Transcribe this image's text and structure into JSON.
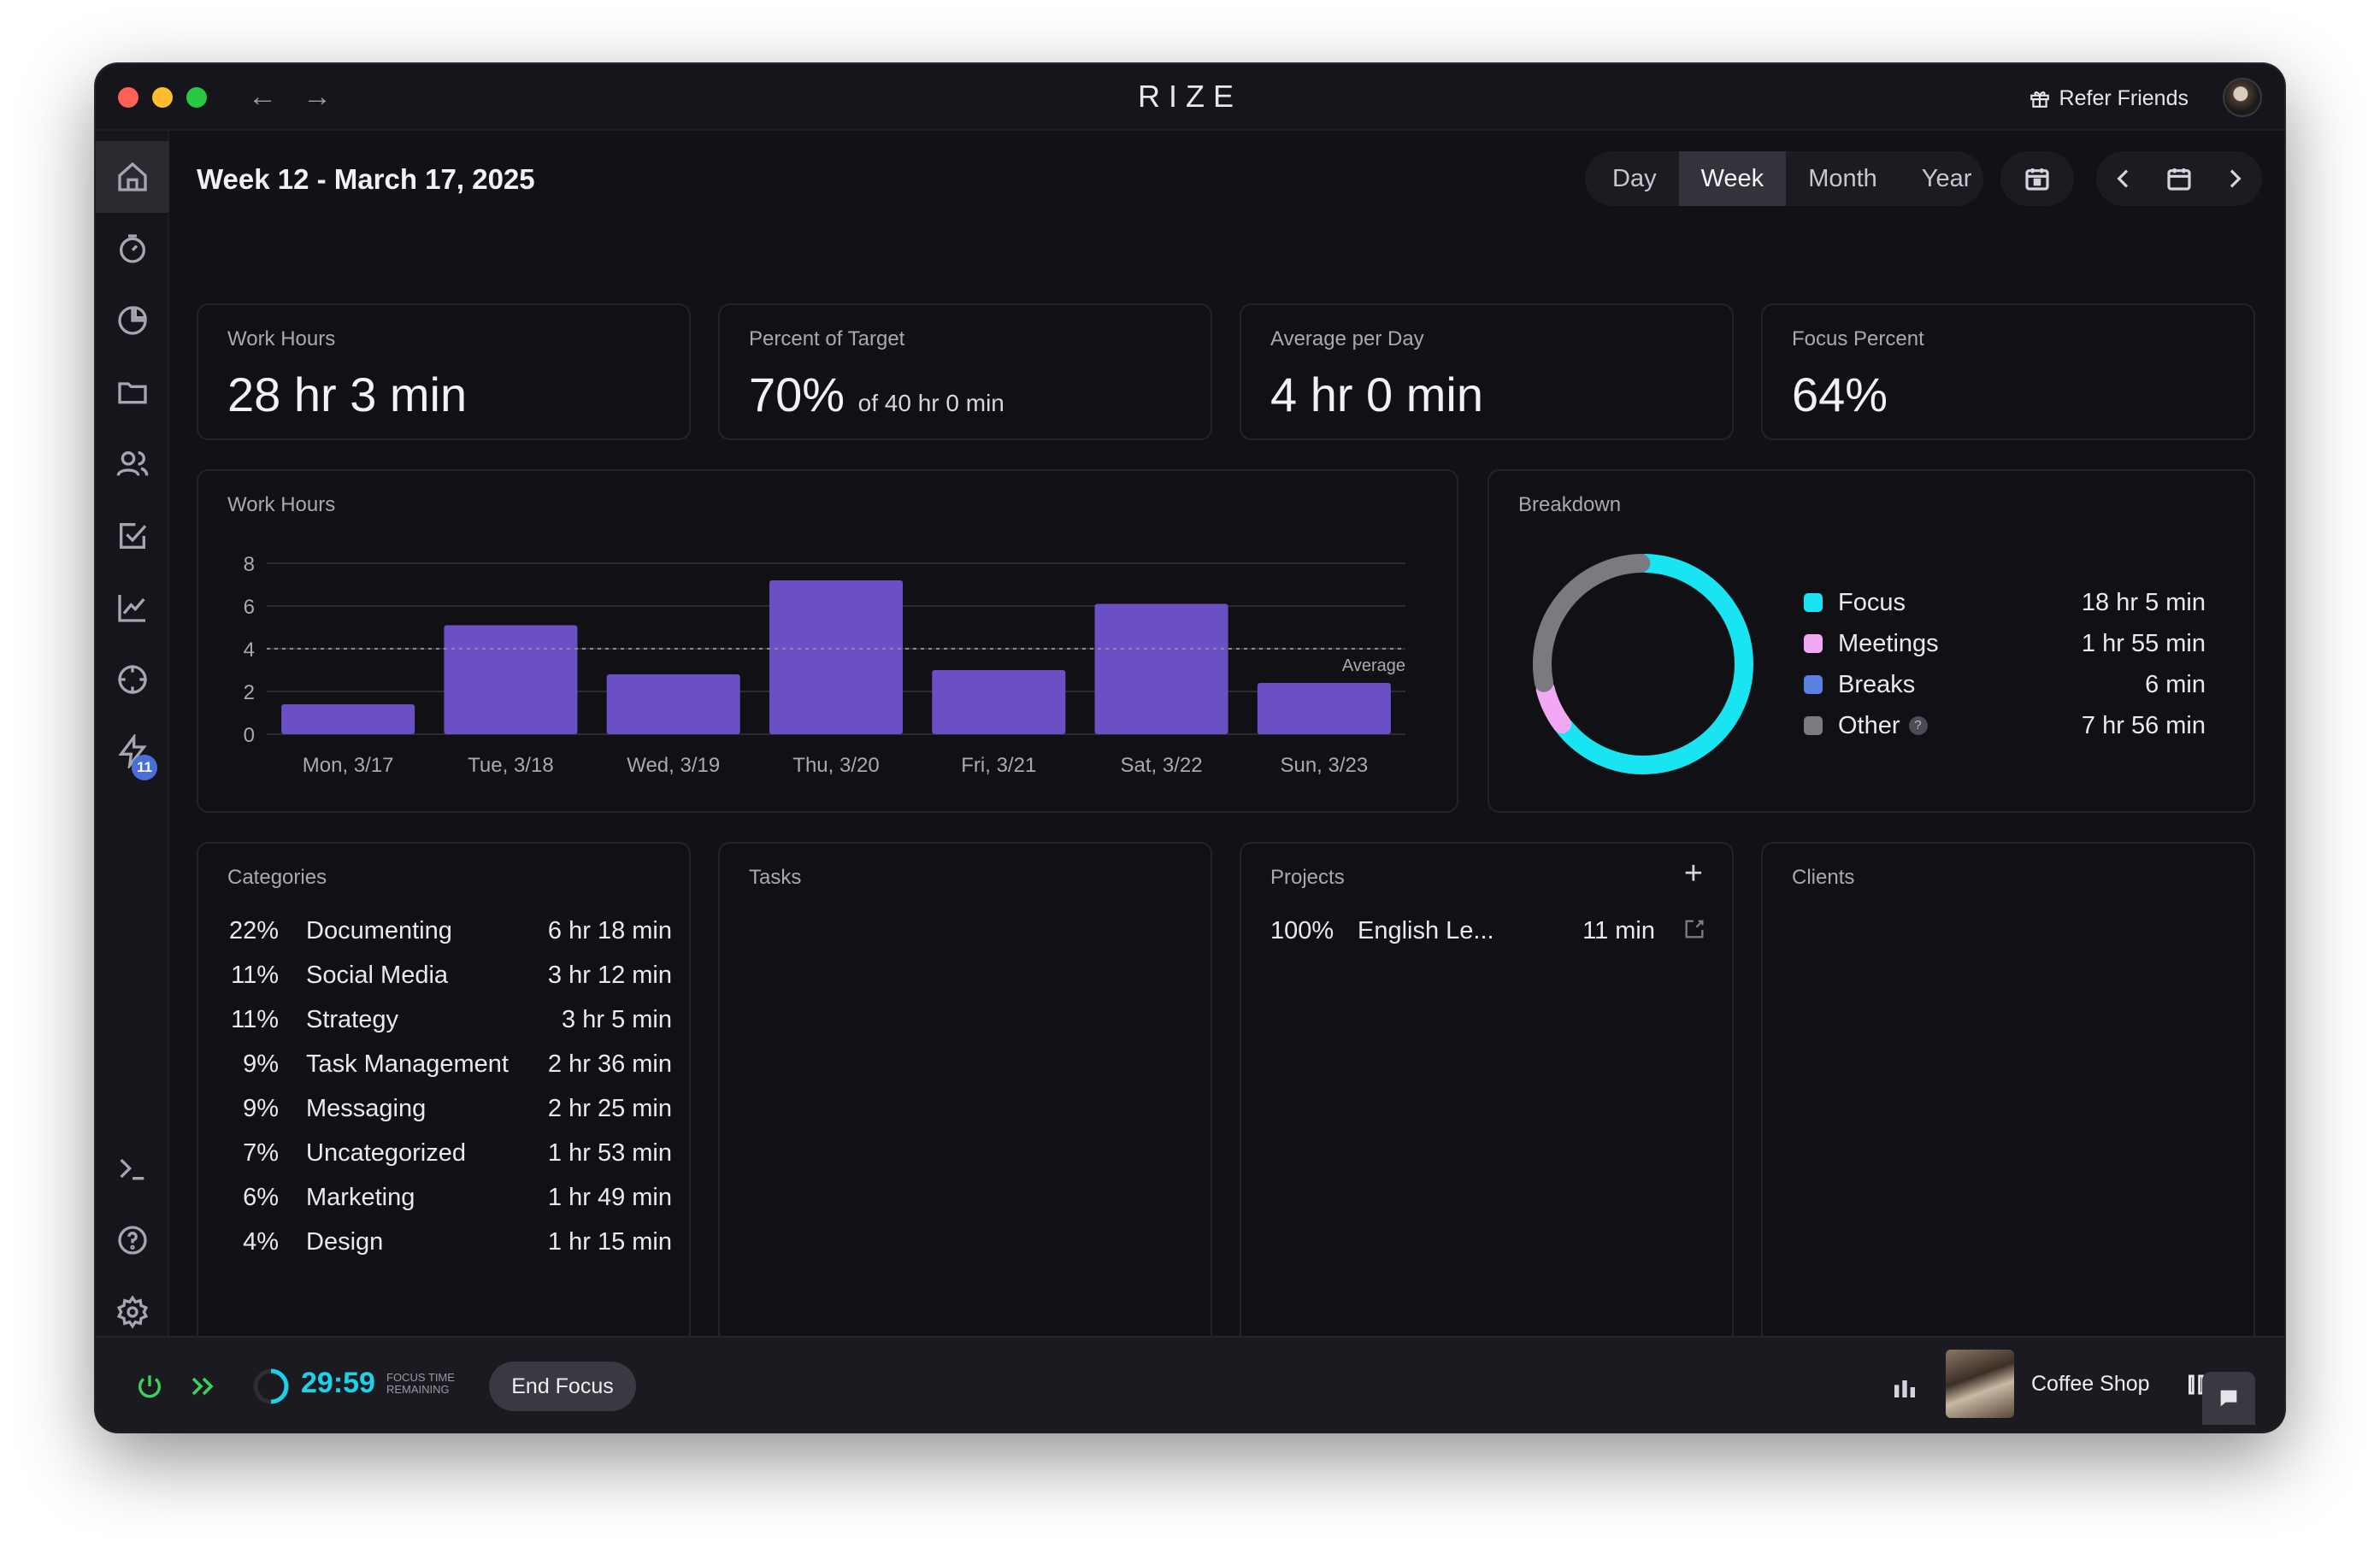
{
  "window": {
    "title": "RIZE",
    "refer_label": "Refer Friends",
    "back_arrow": "←",
    "forward_arrow": "→"
  },
  "sidebar": {
    "items": [
      {
        "name": "home-icon",
        "active": true
      },
      {
        "name": "timer-icon"
      },
      {
        "name": "pie-chart-icon"
      },
      {
        "name": "folder-icon"
      },
      {
        "name": "users-icon"
      },
      {
        "name": "checkbox-icon"
      },
      {
        "name": "trend-chart-icon"
      },
      {
        "name": "target-icon"
      },
      {
        "name": "lightning-icon",
        "badge": "11"
      }
    ],
    "bottom_items": [
      "terminal-icon",
      "help-icon",
      "gear-icon"
    ]
  },
  "header": {
    "title": "Week 12 - March 17, 2025",
    "ranges": [
      "Day",
      "Week",
      "Month",
      "Year"
    ],
    "active_range": "Week"
  },
  "stats": [
    {
      "label": "Work Hours",
      "value": "28 hr 3 min",
      "sub": ""
    },
    {
      "label": "Percent of Target",
      "value": "70%",
      "sub": "of 40 hr 0 min"
    },
    {
      "label": "Average per Day",
      "value": "4 hr 0 min",
      "sub": ""
    },
    {
      "label": "Focus Percent",
      "value": "64%",
      "sub": ""
    }
  ],
  "work_chart": {
    "title": "Work Hours",
    "average_label": "Average"
  },
  "chart_data": {
    "type": "bar",
    "categories": [
      "Mon, 3/17",
      "Tue, 3/18",
      "Wed, 3/19",
      "Thu, 3/20",
      "Fri, 3/21",
      "Sat, 3/22",
      "Sun, 3/23"
    ],
    "values": [
      1.4,
      5.1,
      2.8,
      7.2,
      3.0,
      6.1,
      2.4
    ],
    "yticks": [
      0,
      2,
      4,
      6,
      8
    ],
    "ylim": [
      0,
      8
    ],
    "average": 4.0,
    "bar_color": "#6a50c4",
    "grid": true
  },
  "breakdown": {
    "title": "Breakdown",
    "items": [
      {
        "label": "Focus",
        "value": "18 hr 5 min",
        "color": "#18e4f2",
        "minutes": 1085
      },
      {
        "label": "Meetings",
        "value": "1 hr 55 min",
        "color": "#f2a8f2",
        "minutes": 115
      },
      {
        "label": "Breaks",
        "value": "6 min",
        "color": "#5a7fe0",
        "minutes": 6
      },
      {
        "label": "Other",
        "value": "7 hr 56 min",
        "color": "#7a7a80",
        "minutes": 476,
        "help": "?"
      }
    ]
  },
  "categories": {
    "title": "Categories",
    "rows": [
      {
        "pct": "22%",
        "name": "Documenting",
        "time": "6 hr 18 min"
      },
      {
        "pct": "11%",
        "name": "Social Media",
        "time": "3 hr 12 min"
      },
      {
        "pct": "11%",
        "name": "Strategy",
        "time": "3 hr 5 min"
      },
      {
        "pct": "9%",
        "name": "Task Management",
        "time": "2 hr 36 min"
      },
      {
        "pct": "9%",
        "name": "Messaging",
        "time": "2 hr 25 min"
      },
      {
        "pct": "7%",
        "name": "Uncategorized",
        "time": "1 hr 53 min"
      },
      {
        "pct": "6%",
        "name": "Marketing",
        "time": "1 hr 49 min"
      },
      {
        "pct": "4%",
        "name": "Design",
        "time": "1 hr 15 min"
      }
    ]
  },
  "tasks": {
    "title": "Tasks"
  },
  "projects": {
    "title": "Projects",
    "add_label": "+",
    "rows": [
      {
        "pct": "100%",
        "name": "English Le...",
        "time": "11 min"
      }
    ]
  },
  "clients": {
    "title": "Clients"
  },
  "bottombar": {
    "timer": "29:59",
    "timer_sub": "FOCUS TIME REMAINING",
    "end_focus": "End Focus",
    "sound": "Coffee Shop"
  }
}
